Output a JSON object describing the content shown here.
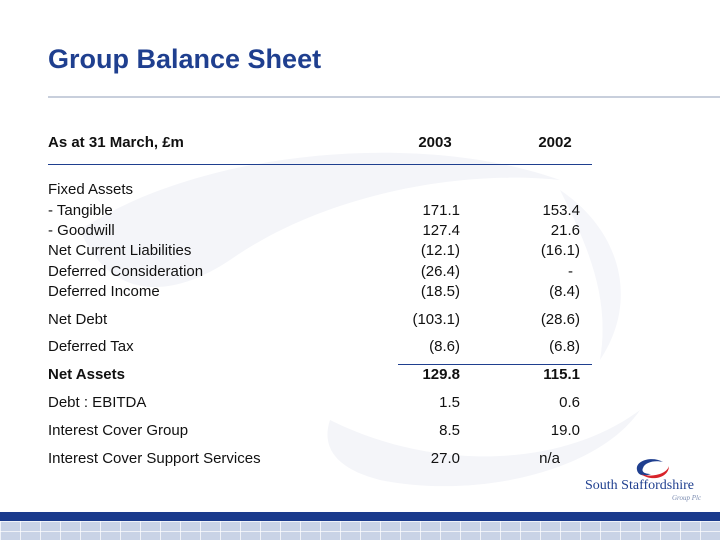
{
  "title": "Group Balance Sheet",
  "header": {
    "label": "As at 31 March, £m",
    "col1": "2003",
    "col2": "2002"
  },
  "rows": [
    {
      "label": "Fixed Assets",
      "v2003": "",
      "v2002": ""
    },
    {
      "label": "- Tangible",
      "v2003": "171.1",
      "v2002": "153.4"
    },
    {
      "label": "- Goodwill",
      "v2003": "127.4",
      "v2002": "21.6"
    },
    {
      "label": "Net Current Liabilities",
      "v2003": "(12.1)",
      "v2002": "(16.1)"
    },
    {
      "label": "Deferred Consideration",
      "v2003": "(26.4)",
      "v2002": "-"
    },
    {
      "label": "Deferred Income",
      "v2003": "(18.5)",
      "v2002": "(8.4)"
    },
    {
      "label": "Net Debt",
      "v2003": "(103.1)",
      "v2002": "(28.6)"
    },
    {
      "label": "Deferred Tax",
      "v2003": "(8.6)",
      "v2002": "(6.8)"
    },
    {
      "label": "Net Assets",
      "v2003": "129.8",
      "v2002": "115.1"
    },
    {
      "label": "Debt : EBITDA",
      "v2003": "1.5",
      "v2002": "0.6"
    },
    {
      "label": "Interest Cover Group",
      "v2003": "8.5",
      "v2002": "19.0"
    },
    {
      "label": "Interest Cover Support Services",
      "v2003": "27.0",
      "v2002": "n/a"
    }
  ],
  "logo": {
    "name": "South Staffordshire",
    "sub": "Group Plc"
  },
  "colors": {
    "accent": "#1f3f8f",
    "bar": "#1a3a8c"
  }
}
